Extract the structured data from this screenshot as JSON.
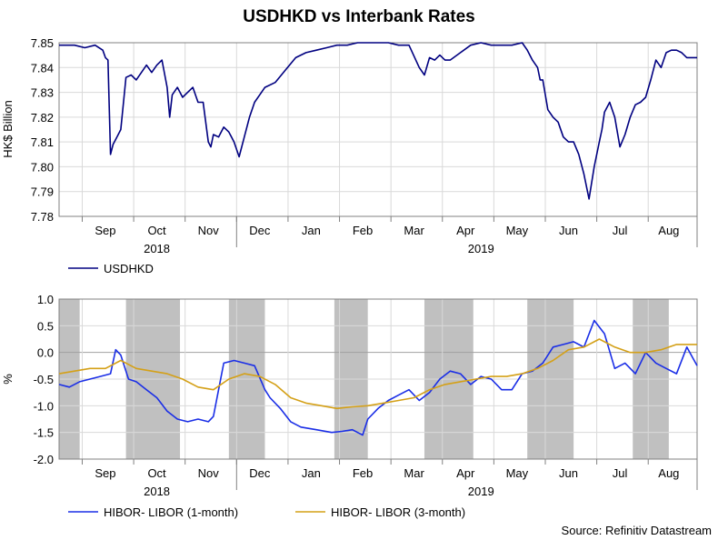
{
  "title": "USDHKD vs Interbank Rates",
  "source": "Source: Refinitiv Datastream",
  "colors": {
    "usdhkd": "#000080",
    "hibor_1m": "#1a2ee6",
    "hibor_3m": "#d4a017",
    "shade": "#c0c0c0",
    "grid": "#d9d9d9",
    "zero_line": "#a0a0a0"
  },
  "chart_data": [
    {
      "type": "line",
      "ylabel": "HK$ Billion",
      "ylim": [
        7.78,
        7.85
      ],
      "yticks": [
        "7.85",
        "7.84",
        "7.83",
        "7.82",
        "7.81",
        "7.80",
        "7.79",
        "7.78"
      ],
      "ytick_values": [
        7.85,
        7.84,
        7.83,
        7.82,
        7.81,
        7.8,
        7.79,
        7.78
      ],
      "month_labels": [
        "Sep",
        "Oct",
        "Nov",
        "Dec",
        "Jan",
        "Feb",
        "Mar",
        "Apr",
        "May",
        "Jun",
        "Jul",
        "Aug"
      ],
      "year_labels": [
        "2018",
        "2019"
      ],
      "grid": true,
      "legend_position": "bottom-left",
      "series": [
        {
          "name": "USDHKD",
          "x": [
            0,
            0.3,
            0.5,
            0.7,
            0.85,
            0.9,
            0.95,
            1.0,
            1.05,
            1.1,
            1.2,
            1.3,
            1.4,
            1.5,
            1.6,
            1.7,
            1.8,
            1.9,
            2.0,
            2.1,
            2.15,
            2.2,
            2.3,
            2.4,
            2.5,
            2.6,
            2.7,
            2.8,
            2.9,
            2.95,
            3.0,
            3.1,
            3.2,
            3.3,
            3.4,
            3.5,
            3.6,
            3.7,
            3.8,
            3.9,
            4.0,
            4.2,
            4.4,
            4.6,
            4.8,
            5.0,
            5.2,
            5.4,
            5.6,
            5.8,
            6.0,
            6.2,
            6.4,
            6.6,
            6.8,
            7.0,
            7.1,
            7.2,
            7.3,
            7.4,
            7.5,
            7.6,
            7.8,
            8.0,
            8.2,
            8.4,
            8.6,
            8.8,
            9.0,
            9.1,
            9.2,
            9.3,
            9.35,
            9.4,
            9.5,
            9.6,
            9.7,
            9.8,
            9.9,
            10.0,
            10.1,
            10.2,
            10.3,
            10.4,
            10.5,
            10.55,
            10.6,
            10.7,
            10.8,
            10.9,
            11.0,
            11.1,
            11.2,
            11.3,
            11.4,
            11.5,
            11.6,
            11.7,
            11.8,
            11.9,
            12.0,
            12.1,
            12.2,
            12.3,
            12.4
          ],
          "values": [
            7.849,
            7.849,
            7.848,
            7.849,
            7.847,
            7.844,
            7.843,
            7.805,
            7.809,
            7.811,
            7.815,
            7.836,
            7.837,
            7.835,
            7.838,
            7.841,
            7.838,
            7.841,
            7.843,
            7.832,
            7.82,
            7.829,
            7.832,
            7.828,
            7.83,
            7.832,
            7.826,
            7.826,
            7.81,
            7.808,
            7.813,
            7.812,
            7.816,
            7.814,
            7.81,
            7.804,
            7.812,
            7.82,
            7.826,
            7.829,
            7.832,
            7.834,
            7.839,
            7.844,
            7.846,
            7.847,
            7.848,
            7.849,
            7.849,
            7.85,
            7.85,
            7.85,
            7.85,
            7.849,
            7.849,
            7.84,
            7.837,
            7.844,
            7.843,
            7.845,
            7.843,
            7.843,
            7.846,
            7.849,
            7.85,
            7.849,
            7.849,
            7.849,
            7.85,
            7.847,
            7.843,
            7.84,
            7.835,
            7.835,
            7.823,
            7.82,
            7.818,
            7.812,
            7.81,
            7.81,
            7.805,
            7.797,
            7.787,
            7.8,
            7.81,
            7.815,
            7.822,
            7.826,
            7.82,
            7.808,
            7.813,
            7.82,
            7.825,
            7.826,
            7.828,
            7.835,
            7.843,
            7.84,
            7.846,
            7.847,
            7.847,
            7.846,
            7.844,
            7.844,
            7.844
          ]
        }
      ]
    },
    {
      "type": "line",
      "ylabel": "%",
      "ylim": [
        -2.0,
        1.0
      ],
      "yticks": [
        "1.0",
        "0.5",
        "0.0",
        "-0.5",
        "-1.0",
        "-1.5",
        "-2.0"
      ],
      "ytick_values": [
        1.0,
        0.5,
        0.0,
        -0.5,
        -1.0,
        -1.5,
        -2.0
      ],
      "month_labels": [
        "Sep",
        "Oct",
        "Nov",
        "Dec",
        "Jan",
        "Feb",
        "Mar",
        "Apr",
        "May",
        "Jun",
        "Jul",
        "Aug"
      ],
      "year_labels": [
        "2018",
        "2019"
      ],
      "grid": true,
      "legend_position": "bottom",
      "shaded_periods": [
        [
          0,
          0.4
        ],
        [
          1.3,
          2.35
        ],
        [
          3.3,
          4.0
        ],
        [
          5.35,
          6.0
        ],
        [
          7.1,
          8.05
        ],
        [
          9.1,
          10.0
        ],
        [
          11.15,
          11.85
        ]
      ],
      "series": [
        {
          "name": "HIBOR- LIBOR (1-month)",
          "x": [
            0,
            0.2,
            0.4,
            0.6,
            0.8,
            1.0,
            1.1,
            1.2,
            1.35,
            1.5,
            1.7,
            1.9,
            2.1,
            2.3,
            2.5,
            2.7,
            2.9,
            3.0,
            3.1,
            3.2,
            3.4,
            3.6,
            3.8,
            4.0,
            4.1,
            4.3,
            4.5,
            4.7,
            5.0,
            5.3,
            5.5,
            5.7,
            5.9,
            6.0,
            6.2,
            6.4,
            6.6,
            6.8,
            7.0,
            7.2,
            7.4,
            7.6,
            7.8,
            8.0,
            8.2,
            8.4,
            8.6,
            8.8,
            9.0,
            9.2,
            9.4,
            9.6,
            9.8,
            10.0,
            10.2,
            10.4,
            10.6,
            10.8,
            11.0,
            11.2,
            11.4,
            11.6,
            11.8,
            12.0,
            12.2,
            12.4
          ],
          "values": [
            -0.6,
            -0.65,
            -0.55,
            -0.5,
            -0.45,
            -0.4,
            0.05,
            -0.05,
            -0.5,
            -0.55,
            -0.7,
            -0.85,
            -1.1,
            -1.25,
            -1.3,
            -1.25,
            -1.3,
            -1.2,
            -0.7,
            -0.2,
            -0.15,
            -0.2,
            -0.25,
            -0.7,
            -0.85,
            -1.05,
            -1.3,
            -1.4,
            -1.45,
            -1.5,
            -1.48,
            -1.45,
            -1.55,
            -1.25,
            -1.05,
            -0.9,
            -0.8,
            -0.7,
            -0.9,
            -0.75,
            -0.5,
            -0.35,
            -0.4,
            -0.6,
            -0.45,
            -0.5,
            -0.7,
            -0.7,
            -0.4,
            -0.35,
            -0.2,
            0.1,
            0.15,
            0.2,
            0.1,
            0.6,
            0.35,
            -0.3,
            -0.2,
            -0.4,
            0.0,
            -0.2,
            -0.3,
            -0.4,
            0.1,
            -0.25
          ]
        },
        {
          "name": "HIBOR- LIBOR (3-month)",
          "x": [
            0,
            0.3,
            0.6,
            0.9,
            1.2,
            1.5,
            1.8,
            2.1,
            2.4,
            2.7,
            3.0,
            3.3,
            3.6,
            3.9,
            4.2,
            4.5,
            4.8,
            5.1,
            5.4,
            5.7,
            6.0,
            6.3,
            6.6,
            6.9,
            7.2,
            7.5,
            7.8,
            8.1,
            8.4,
            8.7,
            9.0,
            9.3,
            9.6,
            9.9,
            10.2,
            10.5,
            10.8,
            11.1,
            11.4,
            11.7,
            12.0,
            12.4
          ],
          "values": [
            -0.4,
            -0.35,
            -0.3,
            -0.3,
            -0.15,
            -0.3,
            -0.35,
            -0.4,
            -0.5,
            -0.65,
            -0.7,
            -0.5,
            -0.4,
            -0.45,
            -0.6,
            -0.85,
            -0.95,
            -1.0,
            -1.05,
            -1.02,
            -1.0,
            -0.95,
            -0.9,
            -0.85,
            -0.7,
            -0.6,
            -0.55,
            -0.5,
            -0.45,
            -0.45,
            -0.4,
            -0.3,
            -0.15,
            0.05,
            0.1,
            0.25,
            0.1,
            0.0,
            0.0,
            0.05,
            0.15,
            0.15
          ]
        }
      ]
    }
  ]
}
